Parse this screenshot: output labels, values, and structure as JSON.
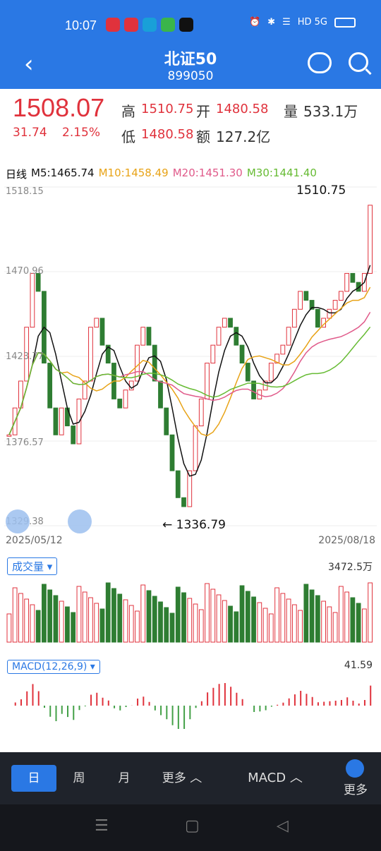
{
  "status": {
    "time": "10:07",
    "battery_label": "HD 5G"
  },
  "header": {
    "title": "北证50",
    "code": "899050"
  },
  "quote": {
    "price": "1508.07",
    "change": "31.74",
    "percent": "2.15%",
    "high_label": "高",
    "high": "1510.75",
    "open_label": "开",
    "open": "1480.58",
    "vol_label": "量",
    "vol": "533.1万",
    "low_label": "低",
    "low": "1480.58",
    "amt_label": "额",
    "amt": "127.2亿"
  },
  "ma": {
    "period": "日线",
    "ma5": "M5:1465.74",
    "ma10": "M10:1458.49",
    "ma20": "M20:1451.30",
    "ma30": "M30:1441.40",
    "colors": {
      "ma5": "#111111",
      "ma10": "#e8a317",
      "ma20": "#e05a8a",
      "ma30": "#66bb33"
    }
  },
  "chart": {
    "y_ticks": [
      "1518.15",
      "1470.96",
      "1423.77",
      "1376.57",
      "1329.38"
    ],
    "start_date": "2025/05/12",
    "end_date": "2025/08/18",
    "max_label": "1510.75",
    "min_label": "1336.79"
  },
  "volume": {
    "button": "成交量",
    "max": "3472.5万"
  },
  "macd": {
    "button": "MACD(12,26,9)",
    "max": "41.59"
  },
  "bottom_tabs": [
    {
      "label": "日"
    },
    {
      "label": "周"
    },
    {
      "label": "月"
    },
    {
      "label": "更多 ︿"
    }
  ],
  "indicator_tab": "MACD ︿",
  "more_label": "更多",
  "chart_data": {
    "type": "candlestick",
    "closes": [
      1380,
      1395,
      1410,
      1440,
      1470,
      1460,
      1420,
      1395,
      1380,
      1395,
      1385,
      1375,
      1400,
      1410,
      1440,
      1445,
      1430,
      1420,
      1400,
      1395,
      1405,
      1410,
      1430,
      1440,
      1430,
      1410,
      1395,
      1380,
      1360,
      1345,
      1340,
      1360,
      1385,
      1400,
      1420,
      1430,
      1440,
      1445,
      1440,
      1430,
      1420,
      1410,
      1400,
      1405,
      1410,
      1420,
      1425,
      1430,
      1440,
      1450,
      1460,
      1455,
      1450,
      1440,
      1445,
      1450,
      1455,
      1460,
      1470,
      1465,
      1460,
      1470,
      1508
    ],
    "ylim": [
      1329.38,
      1518.15
    ]
  }
}
